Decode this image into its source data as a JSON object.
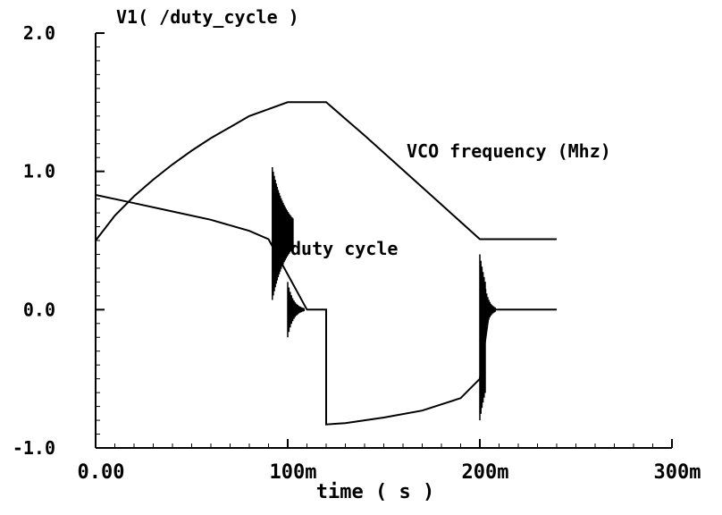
{
  "chart_data": {
    "type": "line",
    "title": "V1( /duty_cycle )",
    "xlabel": "time ( s )",
    "ylabel": "",
    "xlim": [
      0,
      0.3
    ],
    "ylim": [
      -1.0,
      2.0
    ],
    "x_ticks": [
      "0.00",
      "100m",
      "200m",
      "300m"
    ],
    "y_ticks": [
      "2.0",
      "1.0",
      "0.0",
      "-1.0"
    ],
    "grid": false,
    "colors": {
      "background": "#ffffff",
      "trace": "#000000"
    },
    "annotations": [
      "VCO frequency (Mhz)",
      "duty cycle"
    ],
    "series": [
      {
        "x": [
          0,
          0.01,
          0.02,
          0.03,
          0.04,
          0.05,
          0.06,
          0.07,
          0.08,
          0.09,
          0.1,
          0.12,
          0.14,
          0.16,
          0.18,
          0.2,
          0.205,
          0.24
        ],
        "y": [
          0.5,
          0.68,
          0.82,
          0.94,
          1.05,
          1.15,
          1.24,
          1.32,
          1.4,
          1.45,
          1.5,
          1.5,
          1.26,
          1.01,
          0.76,
          0.51,
          0.51,
          0.51
        ]
      },
      {
        "x": [
          0,
          0.02,
          0.04,
          0.06,
          0.08,
          0.09,
          0.11,
          0.12,
          0.12,
          0.13,
          0.15,
          0.17,
          0.19,
          0.2,
          0.205,
          0.24
        ],
        "y": [
          0.83,
          0.77,
          0.71,
          0.65,
          0.57,
          0.51,
          0.0,
          0.0,
          -0.83,
          -0.82,
          -0.78,
          -0.73,
          -0.64,
          -0.5,
          0.0,
          0.0
        ]
      }
    ]
  }
}
